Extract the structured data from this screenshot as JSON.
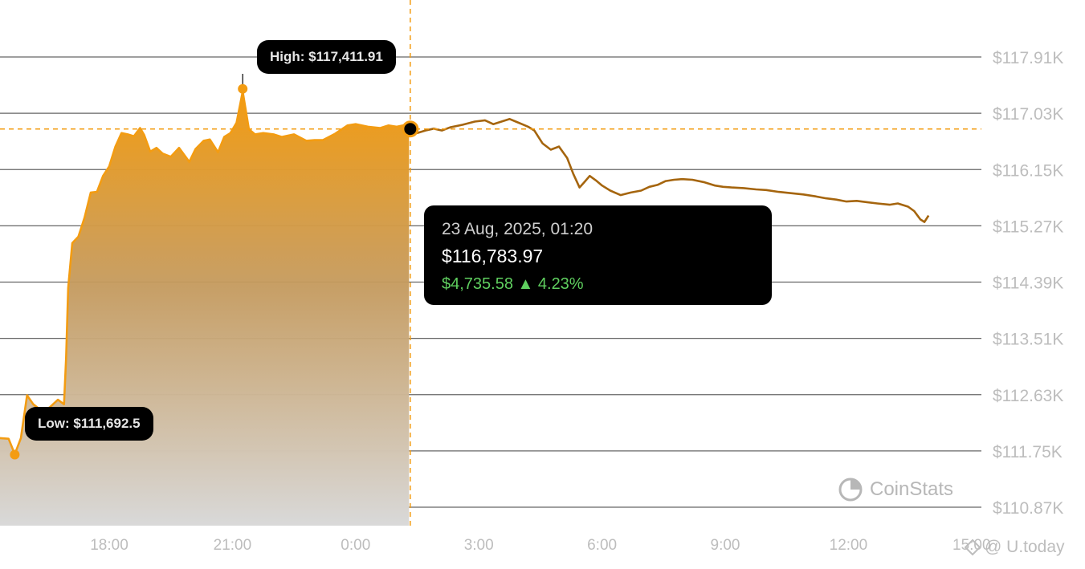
{
  "high_label": {
    "prefix": "High:",
    "value": "$117,411.91"
  },
  "low_label": {
    "prefix": "Low:",
    "value": "$111,692.5"
  },
  "tooltip": {
    "date": "23 Aug, 2025, 01:20",
    "price": "$116,783.97",
    "change": "$4,735.58 ▲ 4.23%"
  },
  "watermark": "CoinStats",
  "credit": "@ U.today",
  "colors": {
    "line": "#F39C12",
    "future_line": "#A5650E",
    "gridline": "#666666",
    "axis_text": "#BDBDBD",
    "change_up": "#5FCF5F",
    "dashed": "#F39C12"
  },
  "chart_data": {
    "type": "area",
    "y_ticks": [
      "$117.91K",
      "$117.03K",
      "$116.15K",
      "$115.27K",
      "$114.39K",
      "$113.51K",
      "$112.63K",
      "$111.75K",
      "$110.87K"
    ],
    "x_ticks": [
      "18:00",
      "21:00",
      "0:00",
      "3:00",
      "6:00",
      "9:00",
      "12:00",
      "15:00"
    ],
    "ylim": [
      110870,
      117910
    ],
    "grid": true,
    "legend": "none",
    "high": 117411.91,
    "low": 111692.5,
    "hover": {
      "time": "01:20",
      "value": 116783.97
    },
    "series": [
      {
        "points": [
          [
            15.35,
            111950
          ],
          [
            15.55,
            111940
          ],
          [
            15.7,
            111700
          ],
          [
            15.85,
            111950
          ],
          [
            16.0,
            112620
          ],
          [
            16.15,
            112480
          ],
          [
            16.35,
            112380
          ],
          [
            16.55,
            112430
          ],
          [
            16.75,
            112550
          ],
          [
            16.9,
            112480
          ],
          [
            16.95,
            113200
          ],
          [
            17.0,
            114300
          ],
          [
            17.1,
            115000
          ],
          [
            17.25,
            115100
          ],
          [
            17.4,
            115400
          ],
          [
            17.55,
            115790
          ],
          [
            17.7,
            115800
          ],
          [
            17.85,
            116050
          ],
          [
            18.0,
            116200
          ],
          [
            18.15,
            116510
          ],
          [
            18.3,
            116720
          ],
          [
            18.45,
            116700
          ],
          [
            18.6,
            116670
          ],
          [
            18.75,
            116800
          ],
          [
            18.85,
            116690
          ],
          [
            19.0,
            116430
          ],
          [
            19.15,
            116490
          ],
          [
            19.3,
            116400
          ],
          [
            19.5,
            116350
          ],
          [
            19.7,
            116490
          ],
          [
            19.95,
            116270
          ],
          [
            20.1,
            116470
          ],
          [
            20.3,
            116600
          ],
          [
            20.45,
            116620
          ],
          [
            20.65,
            116420
          ],
          [
            20.8,
            116660
          ],
          [
            20.95,
            116720
          ],
          [
            21.1,
            116880
          ],
          [
            21.25,
            117370
          ],
          [
            21.4,
            116780
          ],
          [
            21.55,
            116700
          ],
          [
            21.75,
            116720
          ],
          [
            22.0,
            116700
          ],
          [
            22.2,
            116660
          ],
          [
            22.5,
            116700
          ],
          [
            22.8,
            116600
          ],
          [
            23.0,
            116610
          ],
          [
            23.2,
            116610
          ],
          [
            23.5,
            116710
          ],
          [
            23.8,
            116840
          ],
          [
            24.0,
            116860
          ],
          [
            24.3,
            116820
          ],
          [
            24.6,
            116800
          ],
          [
            24.8,
            116840
          ],
          [
            25.0,
            116820
          ],
          [
            25.15,
            116840
          ],
          [
            25.3,
            116790
          ]
        ]
      },
      {
        "points": [
          [
            25.33,
            116780
          ],
          [
            25.5,
            116720
          ],
          [
            25.7,
            116760
          ],
          [
            25.9,
            116790
          ],
          [
            26.1,
            116760
          ],
          [
            26.3,
            116810
          ],
          [
            26.6,
            116850
          ],
          [
            26.9,
            116900
          ],
          [
            27.15,
            116920
          ],
          [
            27.35,
            116860
          ],
          [
            27.55,
            116900
          ],
          [
            27.75,
            116940
          ],
          [
            27.9,
            116900
          ],
          [
            28.05,
            116860
          ],
          [
            28.2,
            116820
          ],
          [
            28.35,
            116760
          ],
          [
            28.55,
            116560
          ],
          [
            28.75,
            116460
          ],
          [
            28.95,
            116510
          ],
          [
            29.15,
            116330
          ],
          [
            29.3,
            116080
          ],
          [
            29.45,
            115870
          ],
          [
            29.55,
            115940
          ],
          [
            29.7,
            116050
          ],
          [
            29.85,
            115980
          ],
          [
            30.0,
            115900
          ],
          [
            30.2,
            115820
          ],
          [
            30.45,
            115750
          ],
          [
            30.7,
            115790
          ],
          [
            30.95,
            115820
          ],
          [
            31.15,
            115880
          ],
          [
            31.35,
            115910
          ],
          [
            31.55,
            115970
          ],
          [
            31.75,
            115990
          ],
          [
            31.95,
            116000
          ],
          [
            32.2,
            115990
          ],
          [
            32.5,
            115950
          ],
          [
            32.75,
            115900
          ],
          [
            32.95,
            115880
          ],
          [
            33.15,
            115870
          ],
          [
            33.45,
            115860
          ],
          [
            33.75,
            115840
          ],
          [
            34.0,
            115830
          ],
          [
            34.3,
            115800
          ],
          [
            34.6,
            115780
          ],
          [
            34.9,
            115760
          ],
          [
            35.2,
            115730
          ],
          [
            35.45,
            115700
          ],
          [
            35.7,
            115680
          ],
          [
            35.95,
            115650
          ],
          [
            36.2,
            115660
          ],
          [
            36.45,
            115640
          ],
          [
            36.7,
            115620
          ],
          [
            37.0,
            115600
          ],
          [
            37.2,
            115620
          ],
          [
            37.45,
            115570
          ],
          [
            37.6,
            115500
          ],
          [
            37.75,
            115370
          ],
          [
            37.85,
            115330
          ],
          [
            37.95,
            115430
          ]
        ]
      }
    ]
  }
}
